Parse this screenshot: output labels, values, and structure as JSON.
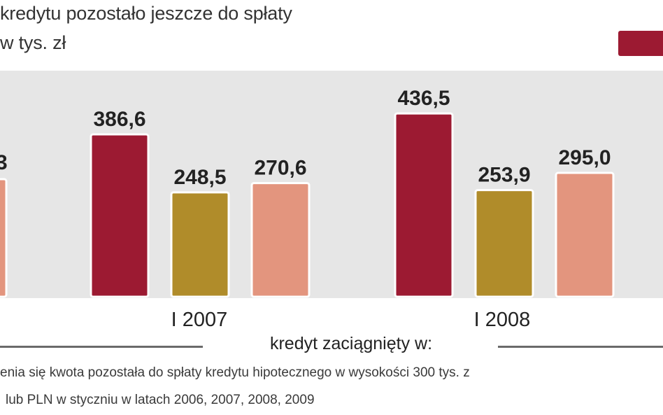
{
  "header": {
    "title_line1": "kredytu pozostało jeszcze do spłaty",
    "title_line2": "w tys. zł"
  },
  "footer": {
    "group_label": "kredyt zaciągnięty w:",
    "note_line1": "enia się kwota pozostała do spłaty kredytu hipotecznego w wysokości 300 tys. z",
    "note_line2": "lub PLN w styczniu w latach 2006, 2007, 2008, 2009"
  },
  "colors": {
    "series1": "#9c1a32",
    "series2": "#b08c2a",
    "series3": "#e3957e"
  },
  "chart_data": {
    "type": "bar",
    "categories": [
      "",
      "I 2007",
      "I 2008"
    ],
    "series": [
      {
        "values": [
          null,
          386.6,
          436.5
        ],
        "color": "#9c1a32"
      },
      {
        "values": [
          null,
          248.5,
          253.9
        ],
        "color": "#b08c2a"
      },
      {
        "values": [
          null,
          270.6,
          295.0
        ],
        "color": "#e3957e"
      }
    ],
    "partial_value_label": "3",
    "value_labels": [
      [
        "",
        "386,6",
        "436,5"
      ],
      [
        "",
        "248,5",
        "253,9"
      ],
      [
        "",
        "270,6",
        "295,0"
      ]
    ],
    "xlabel": "kredyt zaciągnięty w:",
    "ylabel": "w tys. zł",
    "legend_position": "top-right",
    "grid": false
  }
}
